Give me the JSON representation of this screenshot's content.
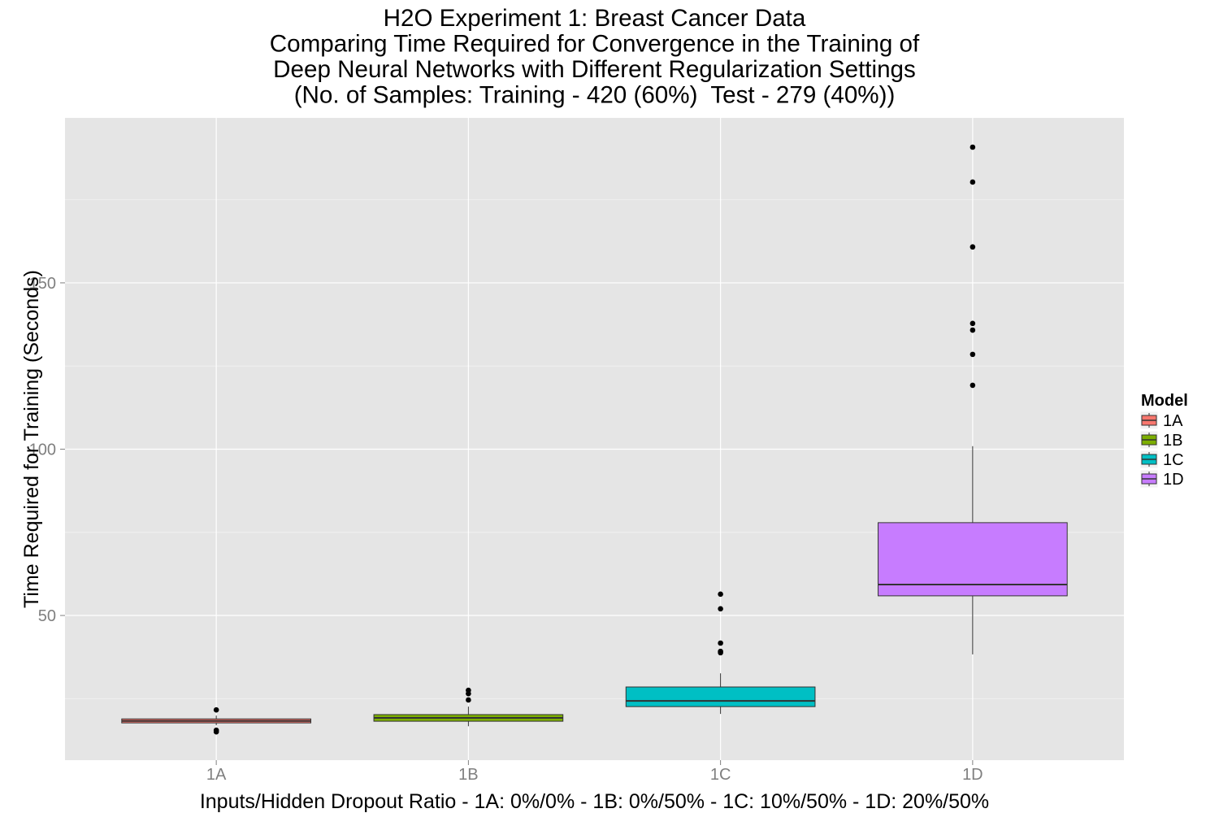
{
  "chart_data": {
    "type": "boxplot",
    "title_lines": [
      "H2O Experiment 1: Breast Cancer Data",
      "Comparing Time Required for Convergence in the Training of",
      "Deep Neural Networks with Different Regularization Settings",
      "(No. of Samples: Training - 420 (60%)  Test - 279 (40%))"
    ],
    "xlabel": "Inputs/Hidden Dropout Ratio - 1A: 0%/0% - 1B: 0%/50% - 1C: 10%/50% - 1D: 20%/50%",
    "ylabel": "Time Required for Training (Seconds)",
    "categories": [
      "1A",
      "1B",
      "1C",
      "1D"
    ],
    "ylim": [
      6.5,
      199.6
    ],
    "y_ticks": [
      50,
      100,
      150
    ],
    "y_minor_ticks": [
      25,
      75,
      125,
      175
    ],
    "grid": true,
    "legend": {
      "title": "Model",
      "position": "right"
    },
    "series": [
      {
        "name": "1A",
        "color": "#F8766D",
        "whisker_low": 17.0,
        "q1": 17.7,
        "median": 18.3,
        "q3": 18.9,
        "whisker_high": 19.9,
        "outliers": [
          21.6,
          15.5,
          15.0
        ]
      },
      {
        "name": "1B",
        "color": "#7CAE00",
        "whisker_low": 16.7,
        "q1": 18.2,
        "median": 19.2,
        "q3": 20.2,
        "whisker_high": 22.6,
        "outliers": [
          27.5,
          26.5,
          24.6
        ]
      },
      {
        "name": "1C",
        "color": "#00BFC4",
        "whisker_low": 20.4,
        "q1": 22.6,
        "median": 24.3,
        "q3": 28.5,
        "whisker_high": 32.6,
        "outliers": [
          56.4,
          52.0,
          41.7,
          39.2,
          38.8
        ]
      },
      {
        "name": "1D",
        "color": "#C77CFF",
        "whisker_low": 38.3,
        "q1": 55.9,
        "median": 59.3,
        "q3": 77.9,
        "whisker_high": 100.9,
        "outliers": [
          190.8,
          180.3,
          160.8,
          137.8,
          135.8,
          128.5,
          119.2
        ]
      }
    ]
  },
  "colors": {
    "page_background": "#FFFFFF",
    "panel_background": "#E5E5E5",
    "gridline_major": "#FFFFFF",
    "gridline_minor": "#F2F2F2",
    "tick_mark": "#7F7F7F",
    "box_outline": "#333333",
    "outlier": "#000000",
    "legend_key_background": "#F2F2F2"
  }
}
